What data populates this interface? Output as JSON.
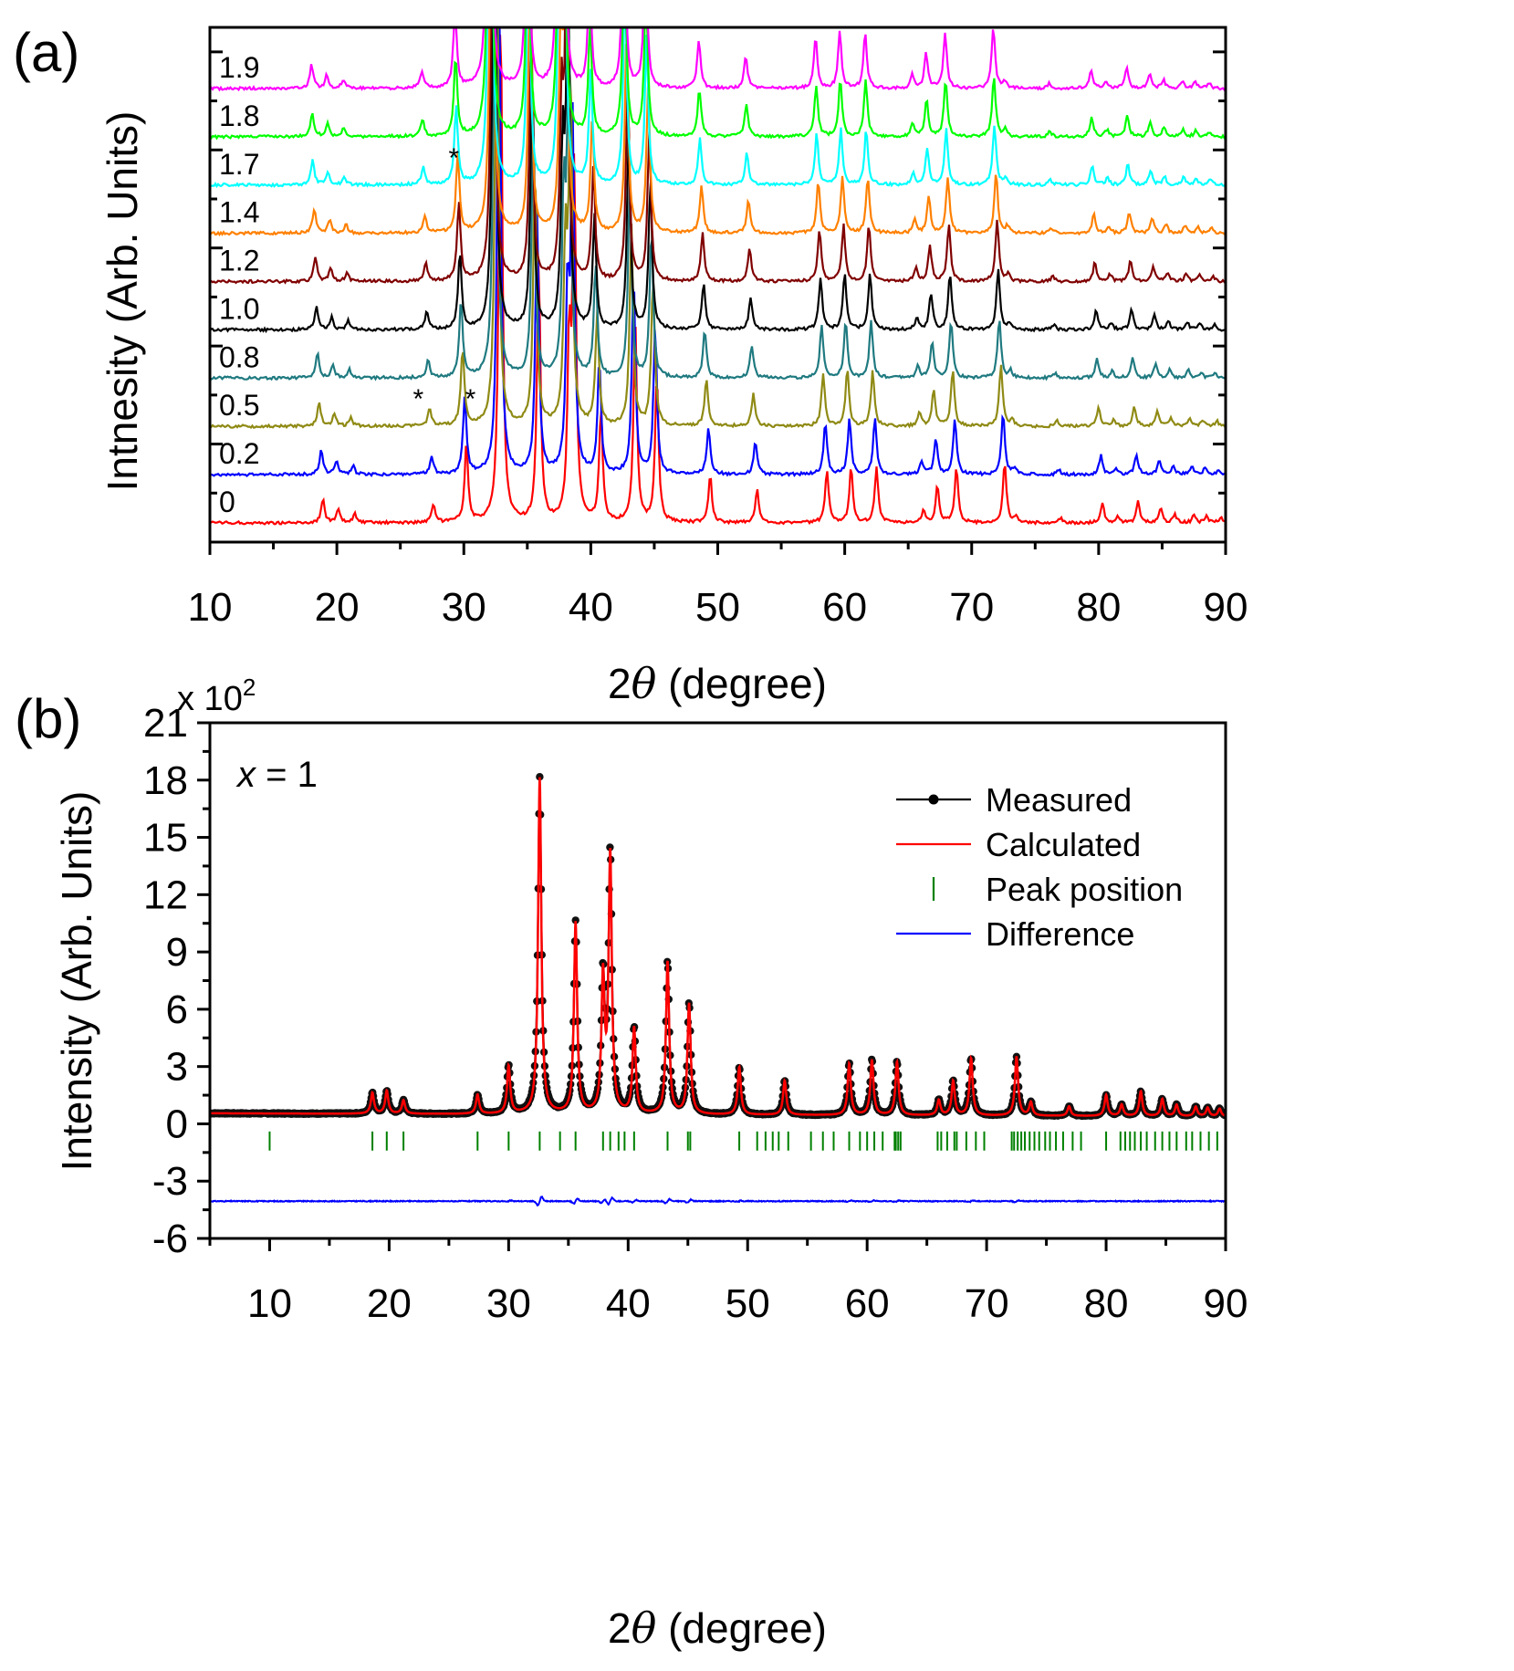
{
  "chart_data": [
    {
      "panel_label": "(a)",
      "type": "line",
      "xlabel_prefix": "2",
      "xlabel_theta": "θ",
      "xlabel_suffix": " (degree)",
      "ylabel": "Intnesity (Arb. Units)",
      "xlim": [
        10,
        90
      ],
      "x_ticks": [
        "10",
        "20",
        "30",
        "40",
        "50",
        "60",
        "70",
        "80",
        "90"
      ],
      "annotations": [
        {
          "text": "*",
          "x": 29.3,
          "series": "1.7",
          "color": "#1a1adc"
        },
        {
          "text": "*",
          "x": 26.5,
          "series": "0.5",
          "color": "#1a1adc"
        },
        {
          "text": "*",
          "x": 30.6,
          "series": "0.5",
          "color": "#1a1adc"
        }
      ],
      "series": [
        {
          "name": "0",
          "color": "#ff0000",
          "shift": 0.0
        },
        {
          "name": "0.2",
          "color": "#0000ff",
          "shift": 0.15
        },
        {
          "name": "0.5",
          "color": "#8f8a14",
          "shift": 0.35
        },
        {
          "name": "0.8",
          "color": "#1f7a80",
          "shift": 0.5
        },
        {
          "name": "1.0",
          "color": "#000000",
          "shift": 0.6
        },
        {
          "name": "1.2",
          "color": "#800000",
          "shift": 0.7
        },
        {
          "name": "1.4",
          "color": "#ff8000",
          "shift": 0.8
        },
        {
          "name": "1.7",
          "color": "#00ffff",
          "shift": 0.95
        },
        {
          "name": "1.8",
          "color": "#00ff00",
          "shift": 1.0
        },
        {
          "name": "1.9",
          "color": "#ff00ff",
          "shift": 1.05
        }
      ],
      "peaks": [
        {
          "x": 18.9,
          "h": 0.28
        },
        {
          "x": 20.1,
          "h": 0.15
        },
        {
          "x": 21.4,
          "h": 0.1
        },
        {
          "x": 27.6,
          "h": 0.2
        },
        {
          "x": 30.2,
          "h": 0.9
        },
        {
          "x": 32.9,
          "h": 6
        },
        {
          "x": 35.9,
          "h": 3
        },
        {
          "x": 38.3,
          "h": 2
        },
        {
          "x": 38.7,
          "h": 4
        },
        {
          "x": 40.8,
          "h": 1.3
        },
        {
          "x": 43.5,
          "h": 2.3
        },
        {
          "x": 45.2,
          "h": 1.7
        },
        {
          "x": 49.4,
          "h": 0.55
        },
        {
          "x": 53.1,
          "h": 0.38
        },
        {
          "x": 58.6,
          "h": 0.6
        },
        {
          "x": 60.5,
          "h": 0.65
        },
        {
          "x": 62.5,
          "h": 0.65
        },
        {
          "x": 66.2,
          "h": 0.15
        },
        {
          "x": 67.3,
          "h": 0.42
        },
        {
          "x": 68.8,
          "h": 0.65
        },
        {
          "x": 72.6,
          "h": 0.7
        },
        {
          "x": 73.5,
          "h": 0.08
        },
        {
          "x": 77.0,
          "h": 0.06
        },
        {
          "x": 80.3,
          "h": 0.22
        },
        {
          "x": 81.5,
          "h": 0.08
        },
        {
          "x": 83.1,
          "h": 0.24
        },
        {
          "x": 84.9,
          "h": 0.17
        },
        {
          "x": 86.0,
          "h": 0.1
        },
        {
          "x": 87.5,
          "h": 0.09
        },
        {
          "x": 88.5,
          "h": 0.07
        },
        {
          "x": 89.6,
          "h": 0.06
        }
      ]
    },
    {
      "panel_label": "(b)",
      "type": "scatter",
      "xlabel_prefix": "2",
      "xlabel_theta": "θ",
      "xlabel_suffix": " (degree)",
      "ylabel": "Intensity (Arb. Units)",
      "y_multiplier_base": "x 10",
      "y_multiplier_exp": "2",
      "annotation_var": "x",
      "annotation_rest": " = 1",
      "xlim": [
        5,
        90
      ],
      "ylim": [
        -6,
        21
      ],
      "x_ticks": [
        "10",
        "20",
        "30",
        "40",
        "50",
        "60",
        "70",
        "80",
        "90"
      ],
      "y_ticks": [
        "21",
        "18",
        "15",
        "12",
        "9",
        "6",
        "3",
        "0",
        "-3",
        "-6"
      ],
      "legend": [
        {
          "label": "Measured",
          "color": "#000000",
          "marker": "line-dot"
        },
        {
          "label": "Calculated",
          "color": "#ff0000",
          "marker": "line"
        },
        {
          "label": "Peak position",
          "color": "#008000",
          "marker": "tick"
        },
        {
          "label": "Difference",
          "color": "#0000ff",
          "marker": "line"
        }
      ],
      "legend_position": "top-right",
      "background_level": 0.55,
      "peaks": [
        {
          "x": 18.6,
          "h": 1.1
        },
        {
          "x": 19.8,
          "h": 1.2
        },
        {
          "x": 21.2,
          "h": 0.7
        },
        {
          "x": 27.4,
          "h": 1.0
        },
        {
          "x": 30.0,
          "h": 2.5
        },
        {
          "x": 32.6,
          "h": 17.6
        },
        {
          "x": 35.6,
          "h": 10.0
        },
        {
          "x": 37.9,
          "h": 7.0
        },
        {
          "x": 38.5,
          "h": 13.5
        },
        {
          "x": 40.5,
          "h": 4.5
        },
        {
          "x": 43.3,
          "h": 8.0
        },
        {
          "x": 45.1,
          "h": 5.8
        },
        {
          "x": 49.3,
          "h": 2.5
        },
        {
          "x": 53.1,
          "h": 1.8
        },
        {
          "x": 58.5,
          "h": 2.7
        },
        {
          "x": 60.4,
          "h": 2.9
        },
        {
          "x": 62.5,
          "h": 2.8
        },
        {
          "x": 66.0,
          "h": 0.8
        },
        {
          "x": 67.2,
          "h": 1.8
        },
        {
          "x": 68.7,
          "h": 3.0
        },
        {
          "x": 72.5,
          "h": 3.1
        },
        {
          "x": 73.7,
          "h": 0.7
        },
        {
          "x": 76.9,
          "h": 0.5
        },
        {
          "x": 80.0,
          "h": 1.1
        },
        {
          "x": 81.3,
          "h": 0.6
        },
        {
          "x": 82.9,
          "h": 1.3
        },
        {
          "x": 84.7,
          "h": 0.9
        },
        {
          "x": 85.9,
          "h": 0.6
        },
        {
          "x": 87.5,
          "h": 0.5
        },
        {
          "x": 88.5,
          "h": 0.45
        },
        {
          "x": 89.5,
          "h": 0.4
        }
      ],
      "peak_positions": [
        10.0,
        18.6,
        19.8,
        21.2,
        27.4,
        30.0,
        32.6,
        34.3,
        35.6,
        37.9,
        38.5,
        39.2,
        39.7,
        40.5,
        43.3,
        45.0,
        45.2,
        49.3,
        50.8,
        51.5,
        52.1,
        52.6,
        53.4,
        55.3,
        56.3,
        57.2,
        58.5,
        59.4,
        60.0,
        60.6,
        61.3,
        62.3,
        62.4,
        62.6,
        62.8,
        65.9,
        66.2,
        66.7,
        67.3,
        67.5,
        68.3,
        69.1,
        69.8,
        72.1,
        72.3,
        72.6,
        72.9,
        73.2,
        73.6,
        74.0,
        74.4,
        74.9,
        75.3,
        75.8,
        76.4,
        77.2,
        77.9,
        80.0,
        81.2,
        81.6,
        82.0,
        82.4,
        82.9,
        83.4,
        84.1,
        84.7,
        85.3,
        85.9,
        86.7,
        87.2,
        87.9,
        88.6,
        89.3,
        90.5
      ]
    }
  ]
}
